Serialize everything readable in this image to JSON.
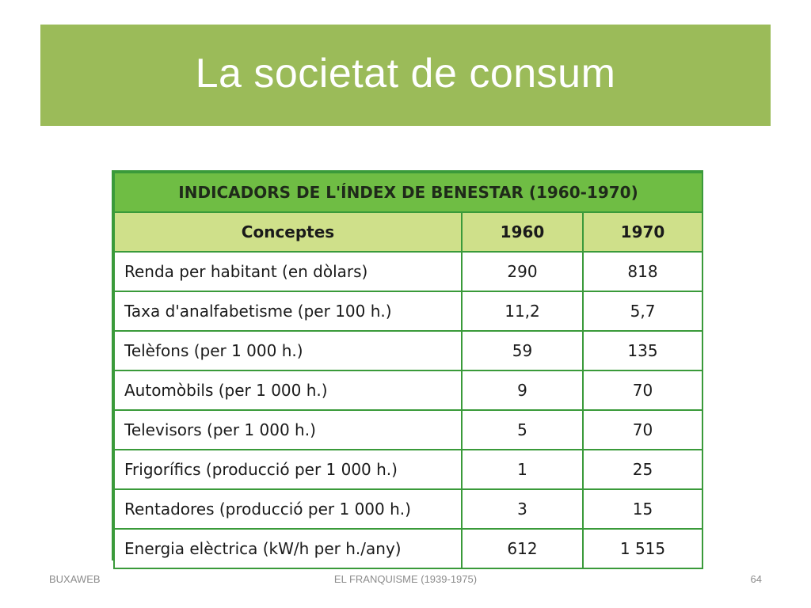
{
  "slide": {
    "title": "La societat de consum"
  },
  "table": {
    "caption": "INDICADORS DE L'ÍNDEX DE BENESTAR (1960-1970)",
    "headers": [
      "Conceptes",
      "1960",
      "1970"
    ],
    "rows": [
      [
        "Renda per habitant (en dòlars)",
        "290",
        "818"
      ],
      [
        "Taxa d'analfabetisme (per 100 h.)",
        "11,2",
        "5,7"
      ],
      [
        "Telèfons (per 1 000 h.)",
        "59",
        "135"
      ],
      [
        "Automòbils (per 1 000 h.)",
        "9",
        "70"
      ],
      [
        "Televisors (per 1 000 h.)",
        "5",
        "70"
      ],
      [
        "Frigorífics (producció per 1 000 h.)",
        "1",
        "25"
      ],
      [
        "Rentadores (producció per 1 000 h.)",
        "3",
        "15"
      ],
      [
        "Energia elèctrica (kW/h per h./any)",
        "612",
        "1 515"
      ]
    ]
  },
  "footer": {
    "left": "BUXAWEB",
    "center": "EL FRANQUISME (1939-1975)",
    "right": "64"
  },
  "colors": {
    "title_bar": "#9bbb59",
    "caption_bg": "#6fbd44",
    "header_bg": "#cfe08a",
    "border": "#3a9a3a"
  }
}
